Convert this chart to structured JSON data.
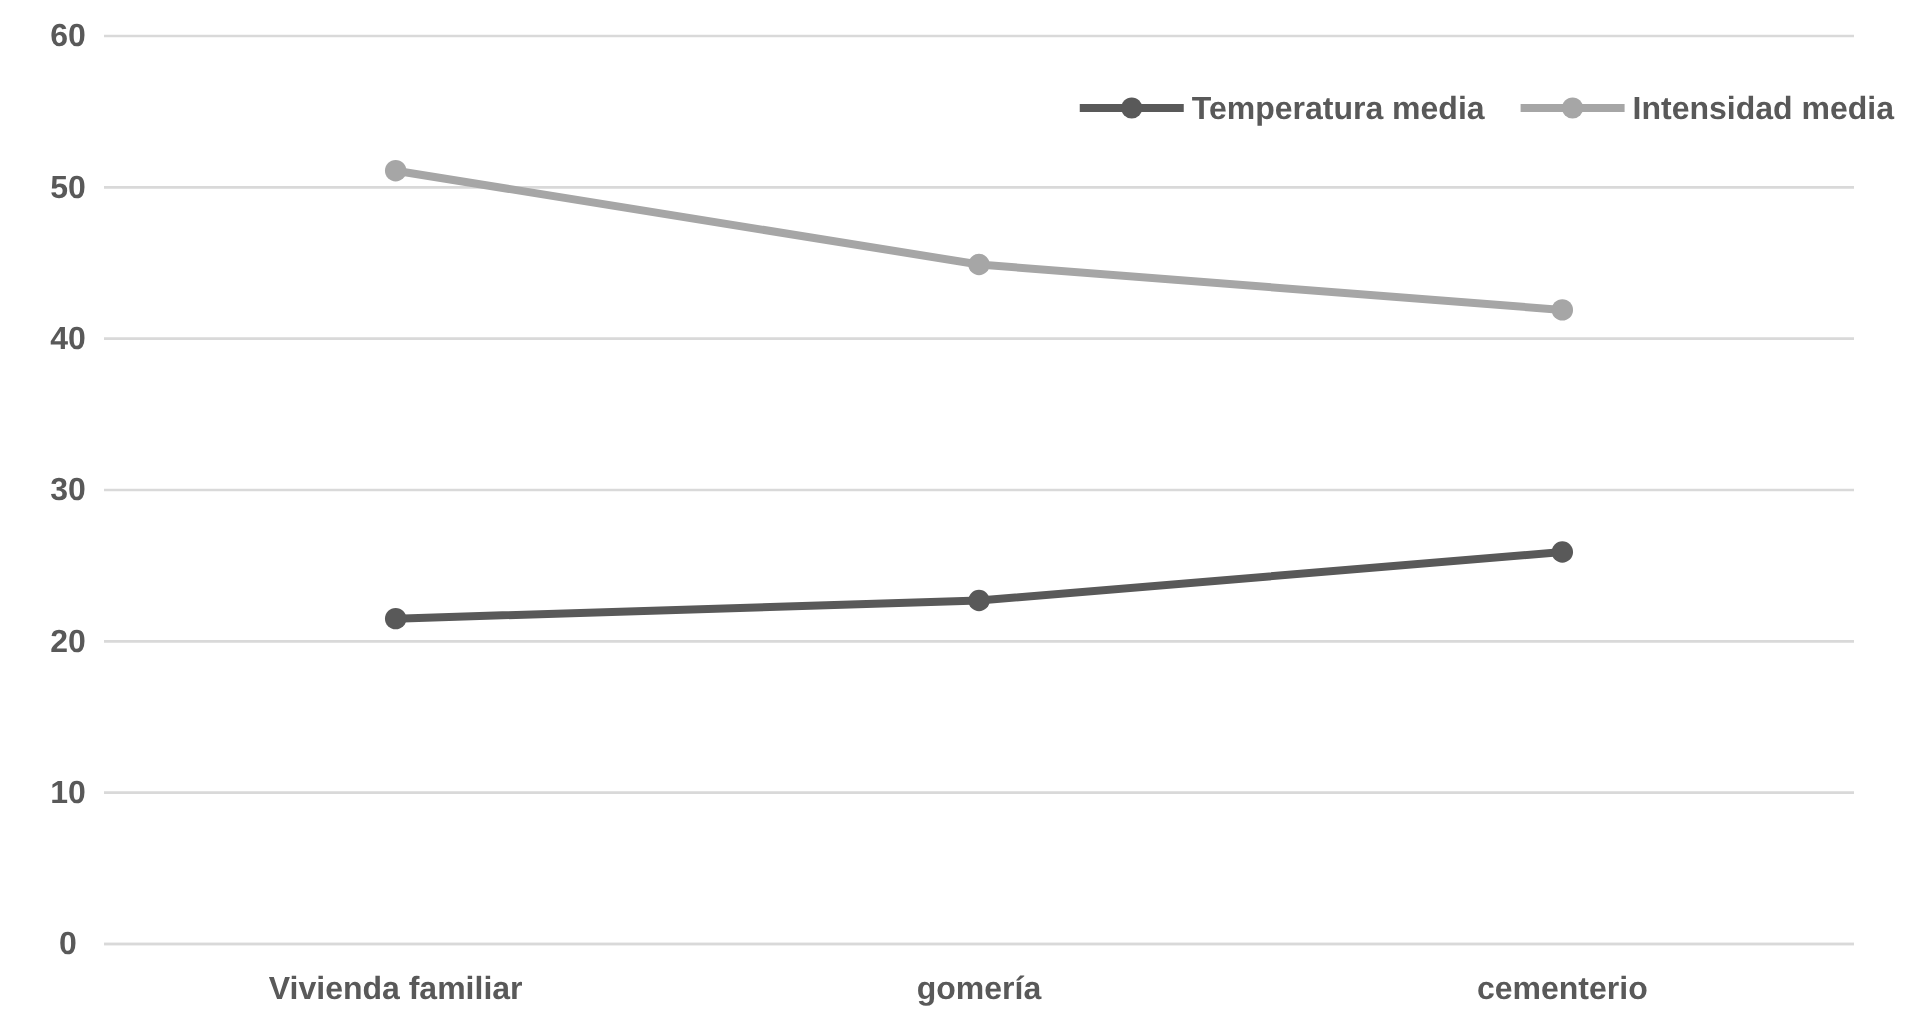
{
  "chart_data": {
    "type": "line",
    "categories": [
      "Vivienda familiar",
      "gomería",
      "cementerio"
    ],
    "series": [
      {
        "name": "Temperatura media",
        "color": "#595959",
        "values": [
          21.5,
          22.7,
          25.9
        ]
      },
      {
        "name": "Intensidad media",
        "color": "#a6a6a6",
        "values": [
          51.1,
          44.9,
          41.9
        ]
      }
    ],
    "ylim": [
      0,
      60
    ],
    "yticks": [
      0,
      10,
      20,
      30,
      40,
      50,
      60
    ],
    "grid": "y",
    "legend": "top right",
    "marker": "circle",
    "line_style": "solid"
  }
}
